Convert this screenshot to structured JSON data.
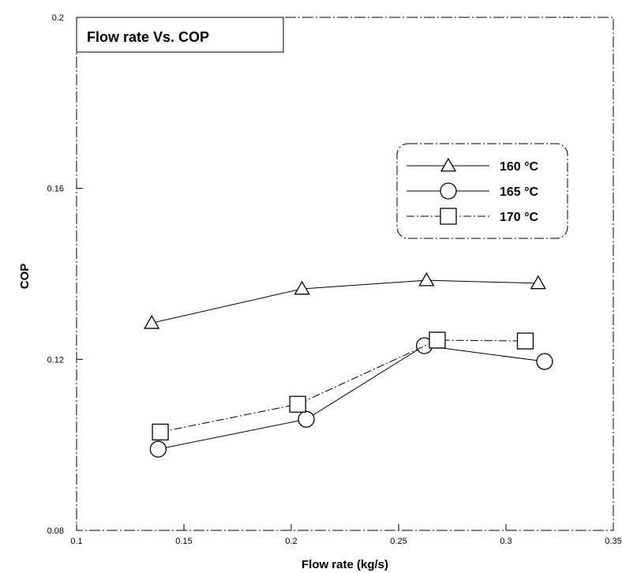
{
  "chart_data": {
    "type": "line",
    "title": "Flow rate Vs. COP",
    "xlabel": "Flow rate (kg/s)",
    "ylabel": "COP",
    "xlim": [
      0.1,
      0.35
    ],
    "ylim": [
      0.08,
      0.2
    ],
    "xticks": [
      "0.1",
      "0.15",
      "0.2",
      "0.25",
      "0.3",
      "0.35"
    ],
    "yticks": [
      "0.08",
      "0.12",
      "0.16",
      "0.2"
    ],
    "grid": false,
    "legend_position": "upper-right",
    "series": [
      {
        "name": "160 °C",
        "marker": "triangle",
        "line_style": "solid",
        "x": [
          0.135,
          0.205,
          0.263,
          0.315
        ],
        "y": [
          0.1285,
          0.1365,
          0.1385,
          0.1378
        ]
      },
      {
        "name": "165 °C",
        "marker": "circle",
        "line_style": "solid",
        "x": [
          0.138,
          0.207,
          0.262,
          0.318
        ],
        "y": [
          0.099,
          0.106,
          0.1232,
          0.1195
        ]
      },
      {
        "name": "170 °C",
        "marker": "square",
        "line_style": "dash-dot",
        "x": [
          0.139,
          0.203,
          0.268,
          0.309
        ],
        "y": [
          0.103,
          0.1095,
          0.1245,
          0.1243
        ]
      }
    ],
    "colors": {
      "background": "#ffffff",
      "ink": "#000000"
    }
  }
}
